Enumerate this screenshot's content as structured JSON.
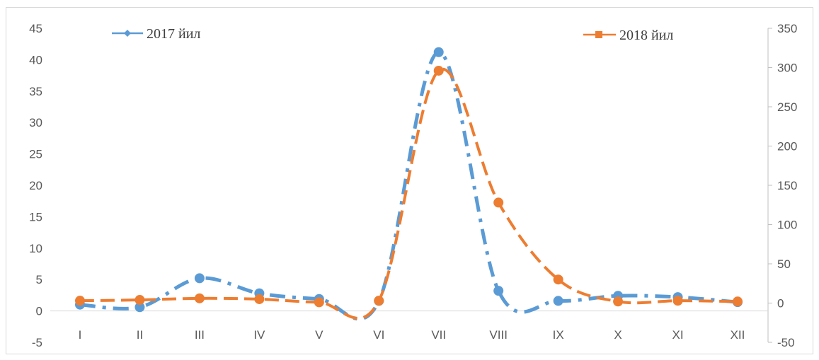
{
  "chart_data": {
    "type": "line",
    "categories": [
      "I",
      "II",
      "III",
      "IV",
      "V",
      "VI",
      "VII",
      "VIII",
      "IX",
      "X",
      "XI",
      "XII"
    ],
    "series": [
      {
        "name": "2017 йил",
        "axis": "left",
        "color": "#5b9bd5",
        "line_style": "dash-dot",
        "smooth": true,
        "values": [
          1.0,
          0.6,
          5.2,
          2.8,
          1.9,
          1.6,
          41.2,
          3.2,
          1.6,
          2.4,
          2.2,
          1.4
        ]
      },
      {
        "name": "2018 йил",
        "axis": "right",
        "color": "#ed7d31",
        "line_style": "dash",
        "smooth": true,
        "values": [
          3,
          4,
          6,
          5,
          1,
          3,
          296,
          128,
          30,
          2,
          3,
          2
        ]
      }
    ],
    "y_left": {
      "min": -5,
      "max": 45,
      "ticks": [
        "45",
        "40",
        "35",
        "30",
        "25",
        "20",
        "15",
        "10",
        "5",
        "0",
        "-5"
      ]
    },
    "y_right": {
      "min": -50,
      "max": 350,
      "ticks": [
        "350",
        "300",
        "250",
        "200",
        "150",
        "100",
        "50",
        "0",
        "-50"
      ]
    },
    "grid": false
  }
}
